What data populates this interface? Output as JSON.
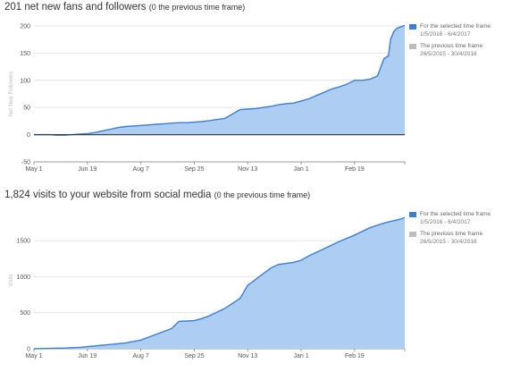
{
  "colors": {
    "current": "#3a7fd5",
    "previous": "#bdbdbd",
    "fill": "#aecdf3",
    "grid": "#e6e6e6",
    "zero": "#333333"
  },
  "chart_data": [
    {
      "type": "area",
      "title": "201 net new fans and followers",
      "subtitle": "(0 the previous time frame)",
      "ylabel": "Net New Followers",
      "ylim": [
        -50,
        200
      ],
      "yticks": [
        -50,
        0,
        50,
        100,
        150,
        200
      ],
      "x_range": [
        "2016-05-01",
        "2017-04-06"
      ],
      "x_ticks": [
        {
          "date": "2016-05-01",
          "label": "May 1"
        },
        {
          "date": "2016-06-19",
          "label": "Jun 19"
        },
        {
          "date": "2016-08-07",
          "label": "Aug 7"
        },
        {
          "date": "2016-09-25",
          "label": "Sep 25"
        },
        {
          "date": "2016-11-13",
          "label": "Nov 13"
        },
        {
          "date": "2017-01-01",
          "label": "Jan 1"
        },
        {
          "date": "2017-02-19",
          "label": "Feb 19"
        }
      ],
      "legend": [
        {
          "label": "For the selected time frame",
          "range": "1/5/2016 - 6/4/2017",
          "color": "#3a7fd5"
        },
        {
          "label": "The previous time frame",
          "range": "26/5/2015 - 30/4/2016",
          "color": "#bdbdbd"
        }
      ],
      "series": [
        {
          "x": [
            "2016-05-01",
            "2016-05-08",
            "2016-05-15",
            "2016-05-22",
            "2016-05-29",
            "2016-06-05",
            "2016-06-12",
            "2016-06-19",
            "2016-06-26",
            "2016-07-03",
            "2016-07-10",
            "2016-07-17",
            "2016-07-24",
            "2016-07-31",
            "2016-08-07",
            "2016-08-14",
            "2016-08-21",
            "2016-08-28",
            "2016-09-04",
            "2016-09-11",
            "2016-09-18",
            "2016-09-25",
            "2016-10-02",
            "2016-10-09",
            "2016-10-16",
            "2016-10-23",
            "2016-10-30",
            "2016-11-06",
            "2016-11-13",
            "2016-11-20",
            "2016-11-27",
            "2016-12-04",
            "2016-12-11",
            "2016-12-18",
            "2016-12-25",
            "2017-01-01",
            "2017-01-08",
            "2017-01-15",
            "2017-01-22",
            "2017-01-29",
            "2017-02-05",
            "2017-02-12",
            "2017-02-19",
            "2017-02-26",
            "2017-03-05",
            "2017-03-12",
            "2017-03-16",
            "2017-03-18",
            "2017-03-22",
            "2017-03-24",
            "2017-03-27",
            "2017-03-30",
            "2017-04-02",
            "2017-04-06"
          ],
          "values": [
            0,
            0,
            0,
            -1,
            -1,
            0,
            1,
            2,
            4,
            7,
            10,
            13,
            15,
            16,
            17,
            18,
            19,
            20,
            21,
            22,
            22,
            23,
            24,
            26,
            28,
            30,
            38,
            46,
            47,
            48,
            50,
            52,
            55,
            57,
            58,
            62,
            66,
            72,
            78,
            84,
            88,
            93,
            100,
            100,
            102,
            108,
            130,
            140,
            145,
            175,
            190,
            196,
            198,
            201
          ]
        }
      ]
    },
    {
      "type": "area",
      "title": "1,824 visits to your website from social media",
      "subtitle": "(0 the previous time frame)",
      "ylabel": "Visits",
      "ylim": [
        0,
        1900
      ],
      "yticks": [
        0,
        500,
        1000,
        1500
      ],
      "x_range": [
        "2016-05-01",
        "2017-04-06"
      ],
      "x_ticks": [
        {
          "date": "2016-05-01",
          "label": "May 1"
        },
        {
          "date": "2016-06-19",
          "label": "Jun 19"
        },
        {
          "date": "2016-08-07",
          "label": "Aug 7"
        },
        {
          "date": "2016-09-25",
          "label": "Sep 25"
        },
        {
          "date": "2016-11-13",
          "label": "Nov 13"
        },
        {
          "date": "2017-01-01",
          "label": "Jan 1"
        },
        {
          "date": "2017-02-19",
          "label": "Feb 19"
        }
      ],
      "legend": [
        {
          "label": "For the selected time frame",
          "range": "1/5/2016 - 6/4/2017",
          "color": "#3a7fd5"
        },
        {
          "label": "The previous time frame",
          "range": "26/5/2015 - 30/4/2016",
          "color": "#bdbdbd"
        }
      ],
      "series": [
        {
          "x": [
            "2016-05-01",
            "2016-05-15",
            "2016-05-29",
            "2016-06-12",
            "2016-06-26",
            "2016-07-10",
            "2016-07-24",
            "2016-08-07",
            "2016-08-21",
            "2016-09-04",
            "2016-09-11",
            "2016-09-18",
            "2016-09-25",
            "2016-10-02",
            "2016-10-09",
            "2016-10-23",
            "2016-11-06",
            "2016-11-13",
            "2016-11-20",
            "2016-11-27",
            "2016-12-04",
            "2016-12-11",
            "2016-12-25",
            "2017-01-01",
            "2017-01-08",
            "2017-01-22",
            "2017-02-05",
            "2017-02-19",
            "2017-03-05",
            "2017-03-19",
            "2017-04-02",
            "2017-04-06"
          ],
          "values": [
            0,
            5,
            10,
            20,
            40,
            60,
            80,
            120,
            200,
            280,
            380,
            385,
            390,
            420,
            460,
            560,
            700,
            880,
            960,
            1040,
            1120,
            1170,
            1200,
            1230,
            1290,
            1390,
            1490,
            1580,
            1680,
            1750,
            1800,
            1824
          ]
        }
      ]
    }
  ]
}
